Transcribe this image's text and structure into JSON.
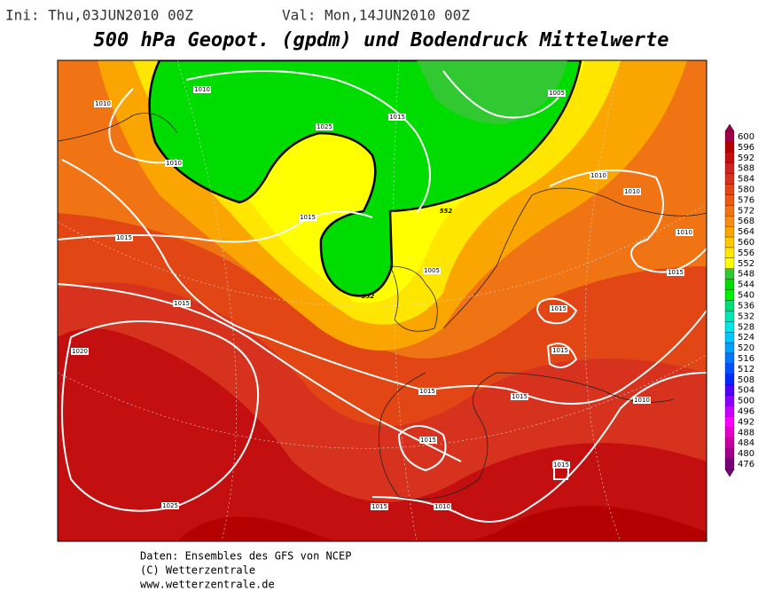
{
  "header": {
    "init": "Ini: Thu,03JUN2010  00Z",
    "valid": "Val: Mon,14JUN2010  00Z",
    "title": "500 hPa Geopot. (gpdm) und Bodendruck Mittelwerte"
  },
  "colorbar": [
    {
      "label": 600,
      "color": "#a0004b"
    },
    {
      "label": 596,
      "color": "#b40000"
    },
    {
      "label": 592,
      "color": "#c30f0f"
    },
    {
      "label": 588,
      "color": "#cd2323"
    },
    {
      "label": 584,
      "color": "#d7321e"
    },
    {
      "label": 580,
      "color": "#e14614"
    },
    {
      "label": 576,
      "color": "#eb5a14"
    },
    {
      "label": 572,
      "color": "#f07314"
    },
    {
      "label": 568,
      "color": "#f58c14"
    },
    {
      "label": 564,
      "color": "#faa500"
    },
    {
      "label": 560,
      "color": "#ffc800"
    },
    {
      "label": 556,
      "color": "#ffe600"
    },
    {
      "label": 552,
      "color": "#ffff00"
    },
    {
      "label": 548,
      "color": "#32c832"
    },
    {
      "label": 544,
      "color": "#00dc00"
    },
    {
      "label": 540,
      "color": "#00f000"
    },
    {
      "label": 536,
      "color": "#00dc78"
    },
    {
      "label": 532,
      "color": "#00e6b4"
    },
    {
      "label": 528,
      "color": "#00e6e6"
    },
    {
      "label": 524,
      "color": "#00c8ff"
    },
    {
      "label": 520,
      "color": "#00a0ff"
    },
    {
      "label": 516,
      "color": "#0078ff"
    },
    {
      "label": 512,
      "color": "#0050ff"
    },
    {
      "label": 508,
      "color": "#0028ff"
    },
    {
      "label": 504,
      "color": "#5000ff"
    },
    {
      "label": 500,
      "color": "#8c00ff"
    },
    {
      "label": 496,
      "color": "#c800ff"
    },
    {
      "label": 492,
      "color": "#ff00ff"
    },
    {
      "label": 488,
      "color": "#e600c8"
    },
    {
      "label": 484,
      "color": "#c800a0"
    },
    {
      "label": 480,
      "color": "#a0008c"
    },
    {
      "label": 476,
      "color": "#780078"
    }
  ],
  "contour_labels": [
    1010,
    1010,
    1010,
    1010,
    1010,
    1010,
    1010,
    1010,
    1005,
    1005,
    1015,
    1015,
    1015,
    1015,
    1015,
    1015,
    1015,
    1015,
    1015,
    1015,
    1015,
    1015,
    1020,
    1025,
    1025,
    552,
    552,
    552
  ],
  "footer": [
    "Daten: Ensembles des GFS von NCEP",
    "(C) Wetterzentrale",
    "www.wetterzentrale.de"
  ]
}
